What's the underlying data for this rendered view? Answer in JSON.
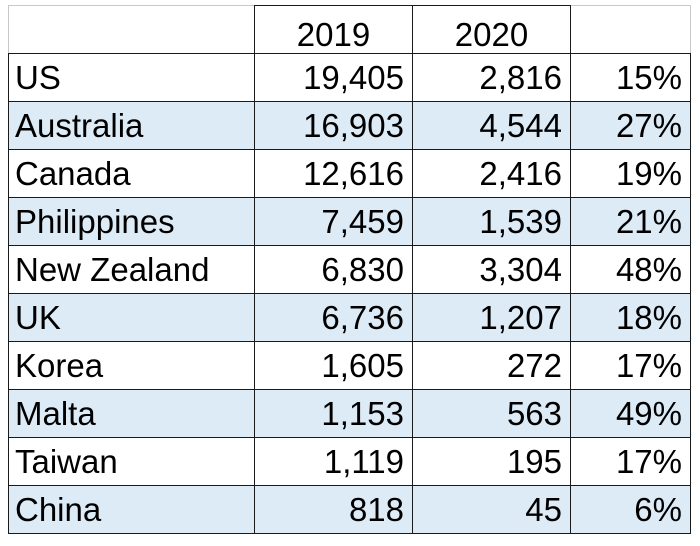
{
  "table": {
    "headers": [
      "",
      "2019",
      "2020",
      ""
    ],
    "rows": [
      {
        "label": "US",
        "y2019": "19,405",
        "y2020": "2,816",
        "pct": "15%"
      },
      {
        "label": "Australia",
        "y2019": "16,903",
        "y2020": "4,544",
        "pct": "27%"
      },
      {
        "label": "Canada",
        "y2019": "12,616",
        "y2020": "2,416",
        "pct": "19%"
      },
      {
        "label": "Philippines",
        "y2019": "7,459",
        "y2020": "1,539",
        "pct": "21%"
      },
      {
        "label": "New Zealand",
        "y2019": "6,830",
        "y2020": "3,304",
        "pct": "48%"
      },
      {
        "label": "UK",
        "y2019": "6,736",
        "y2020": "1,207",
        "pct": "18%"
      },
      {
        "label": "Korea",
        "y2019": "1,605",
        "y2020": "272",
        "pct": "17%"
      },
      {
        "label": "Malta",
        "y2019": "1,153",
        "y2020": "563",
        "pct": "49%"
      },
      {
        "label": "Taiwan",
        "y2019": "1,119",
        "y2020": "195",
        "pct": "17%"
      },
      {
        "label": "China",
        "y2019": "818",
        "y2020": "45",
        "pct": "6%"
      }
    ]
  },
  "colors": {
    "band_fill": "#ddebf7",
    "grid_line": "#1a1a1a",
    "text": "#000000"
  }
}
